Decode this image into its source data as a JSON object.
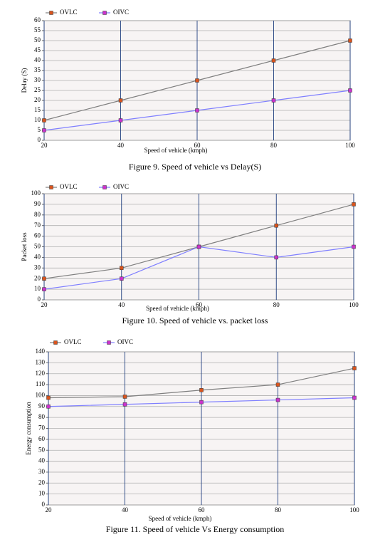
{
  "chart_data": [
    {
      "type": "line",
      "x_label": "Speed of vehicle (kmph)",
      "y_label": "Delay (S)",
      "caption": "Figure 9. Speed of vehicle vs Delay(S)",
      "x": [
        20,
        40,
        60,
        80,
        100
      ],
      "xlim": [
        20,
        100
      ],
      "xticks": [
        20,
        40,
        60,
        80,
        100
      ],
      "ylim": [
        0,
        60
      ],
      "yticks": [
        0,
        5,
        10,
        15,
        20,
        25,
        30,
        35,
        40,
        45,
        50,
        55,
        60
      ],
      "grid": true,
      "series": [
        {
          "name": "OVLC",
          "color": "#d9541e",
          "line_color": "#7f7f7f",
          "values": [
            10,
            20,
            30,
            40,
            50
          ]
        },
        {
          "name": "OIVC",
          "color": "#cc33cc",
          "line_color": "#7f7fff",
          "values": [
            5,
            10,
            15,
            20,
            25
          ]
        }
      ]
    },
    {
      "type": "line",
      "x_label": "Speed of vehicle (kmph)",
      "y_label": "Packet loss",
      "caption": "Figure 10. Speed of vehicle vs. packet loss",
      "x": [
        20,
        40,
        60,
        80,
        100
      ],
      "xlim": [
        20,
        100
      ],
      "xticks": [
        20,
        40,
        60,
        80,
        100
      ],
      "ylim": [
        0,
        100
      ],
      "yticks": [
        0,
        10,
        20,
        30,
        40,
        50,
        60,
        70,
        80,
        90,
        100
      ],
      "grid": true,
      "series": [
        {
          "name": "OVLC",
          "color": "#d9541e",
          "line_color": "#7f7f7f",
          "values": [
            20,
            30,
            50,
            70,
            90
          ]
        },
        {
          "name": "OIVC",
          "color": "#cc33cc",
          "line_color": "#7f7fff",
          "values": [
            10,
            20,
            50,
            40,
            50
          ]
        }
      ]
    },
    {
      "type": "line",
      "x_label": "Speed of vehicle (kmph)",
      "y_label": "Energy consumption",
      "caption": "Figure 11. Speed of vehicle Vs Energy consumption",
      "x": [
        20,
        40,
        60,
        80,
        100
      ],
      "xlim": [
        20,
        100
      ],
      "xticks": [
        20,
        40,
        60,
        80,
        100
      ],
      "ylim": [
        0,
        140
      ],
      "yticks": [
        0,
        10,
        20,
        30,
        40,
        50,
        60,
        70,
        80,
        90,
        100,
        110,
        120,
        130,
        140
      ],
      "grid": true,
      "series": [
        {
          "name": "OVLC",
          "color": "#d9541e",
          "line_color": "#7f7f7f",
          "values": [
            98,
            99,
            105,
            110,
            125
          ]
        },
        {
          "name": "OIVC",
          "color": "#cc33cc",
          "line_color": "#7f7fff",
          "values": [
            90,
            92,
            94,
            96,
            98
          ]
        }
      ]
    }
  ]
}
